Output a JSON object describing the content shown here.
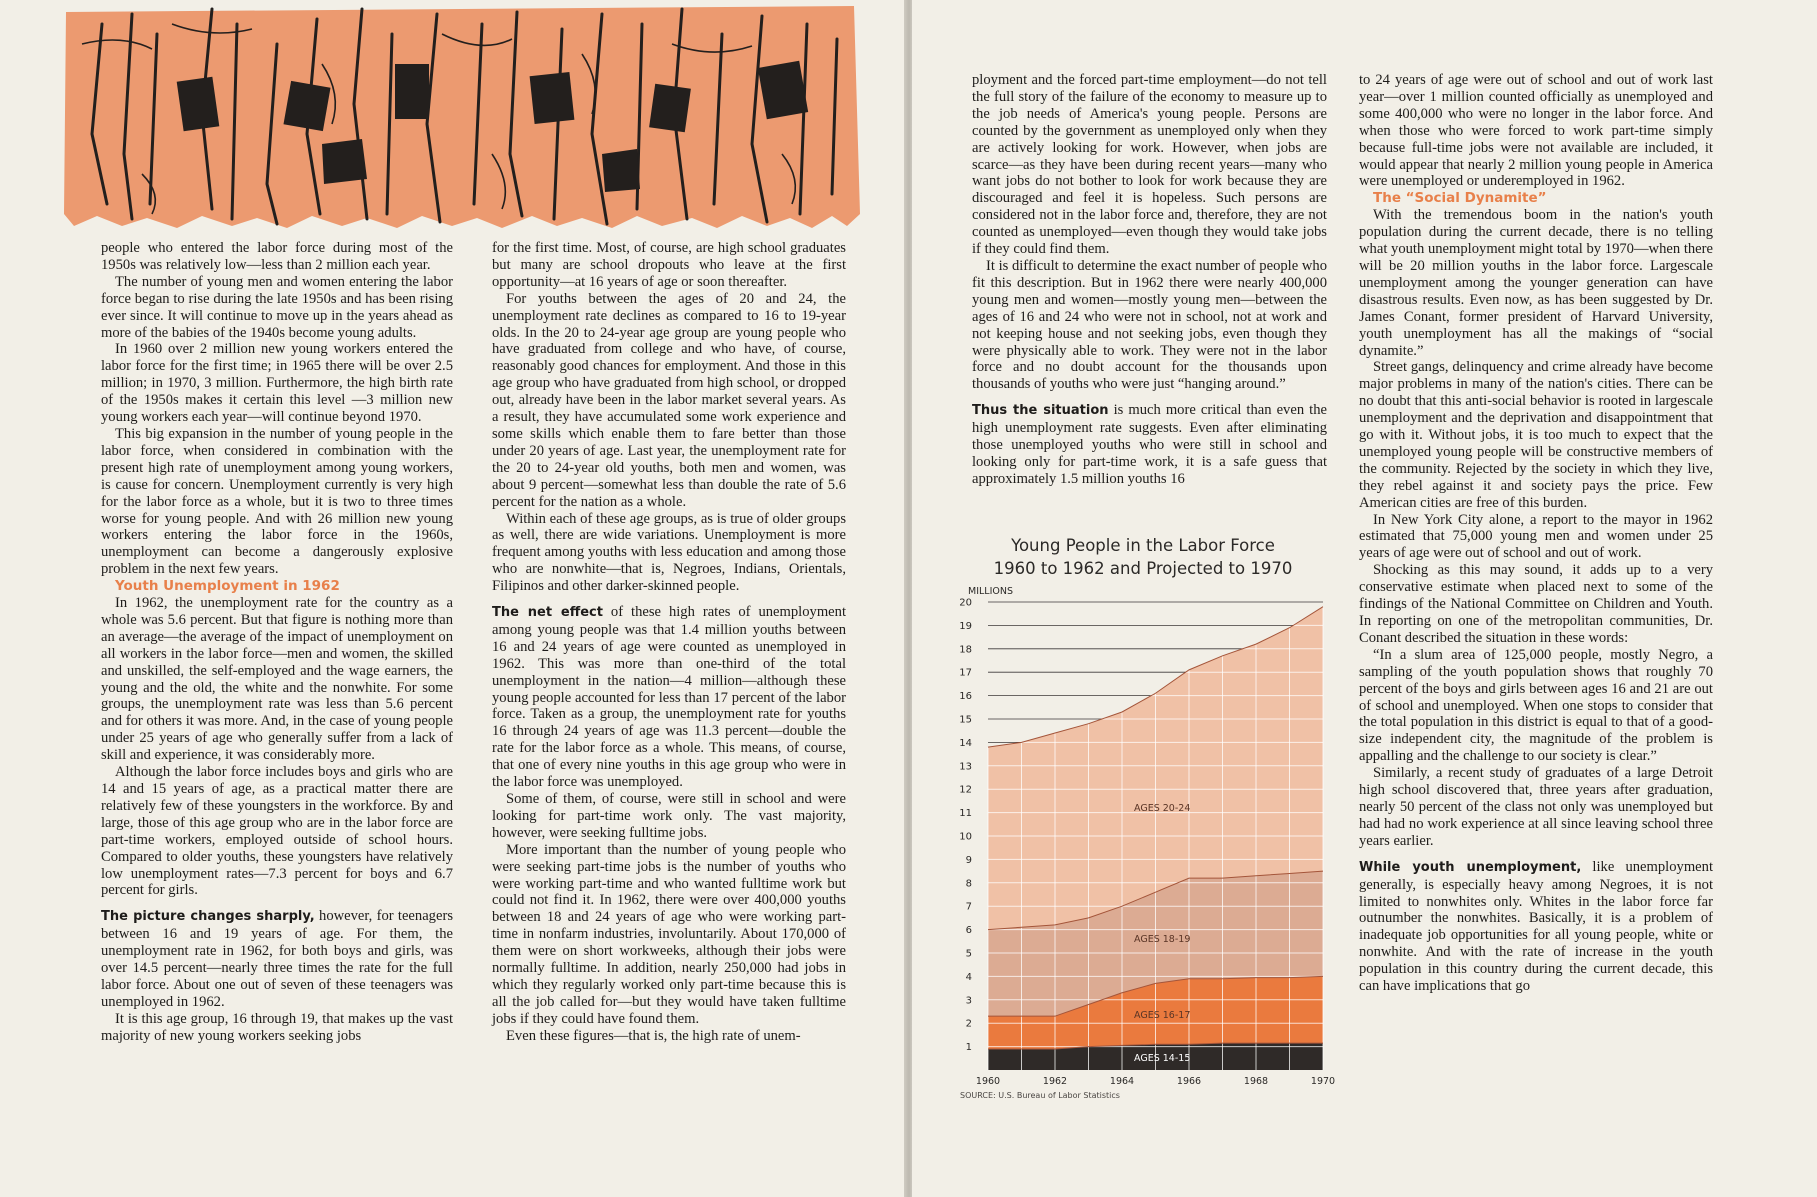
{
  "left_col1": {
    "p1": "people who entered the labor force during most of the 1950s was relatively low—less than 2 million each year.",
    "p2": "The number of young men and women entering the labor force began to rise during the late 1950s and has been rising ever since. It will continue to move up in the years ahead as more of the babies of the 1940s become young adults.",
    "p3": "In 1960 over 2 million new young workers entered the labor force for the first time; in 1965 there will be over 2.5 million; in 1970, 3 million. Furthermore, the high birth rate of the 1950s makes it certain this level —3 million new young workers each year—will continue beyond 1970.",
    "p4": "This big expansion in the number of young people in the labor force, when considered in combination with the present high rate of unemployment among young workers, is cause for concern. Unemployment currently is very high for the labor force as a whole, but it is two to three times worse for young people. And with 26 million new young workers entering the labor force in the 1960s, unemployment can become a dangerously explosive problem in the next few years.",
    "heading": "Youth Unemployment in 1962",
    "p5": "In 1962, the unemployment rate for the country as a whole was 5.6 percent. But that figure is nothing more than an average—the average of the impact of unemployment on all workers in the labor force—men and women, the skilled and unskilled, the self-employed and the wage earners, the young and the old, the white and the nonwhite. For some groups, the unemployment rate was less than 5.6 percent and for others it was more. And, in the case of young people under 25 years of age who generally suffer from a lack of skill and experience, it was considerably more.",
    "p6": "Although the labor force includes boys and girls who are 14 and 15 years of age, as a practical matter there are relatively few of these youngsters in the workforce. By and large, those of this age group who are in the labor force are part-time workers, employed outside of school hours. Compared to older youths, these youngsters have relatively low unemployment rates—7.3 percent for boys and 6.7 percent for girls.",
    "p7_lead": "The picture changes sharply,",
    "p7": " however, for teenagers between 16 and 19 years of age. For them, the unemployment rate in 1962, for both boys and girls, was over 14.5 percent—nearly three times the rate for the full labor force. About one out of seven of these teenagers was unemployed in 1962.",
    "p8": "It is this age group, 16 through 19, that makes up the vast majority of new young workers seeking jobs"
  },
  "left_col2": {
    "p1": "for the first time. Most, of course, are high school graduates but many are school dropouts who leave at the first opportunity—at 16 years of age or soon thereafter.",
    "p2": "For youths between the ages of 20 and 24, the unemployment rate declines as compared to 16 to 19-year olds. In the 20 to 24-year age group are young people who have graduated from college and who have, of course, reasonably good chances for employment. And those in this age group who have graduated from high school, or dropped out, already have been in the labor market several years. As a result, they have accumulated some work experience and some skills which enable them to fare better than those under 20 years of age. Last year, the unemployment rate for the 20 to 24-year old youths, both men and women, was about 9 percent—somewhat less than double the rate of 5.6 percent for the nation as a whole.",
    "p3": "Within each of these age groups, as is true of older groups as well, there are wide variations. Unemployment is more frequent among youths with less education and among those who are nonwhite—that is, Negroes, Indians, Orientals, Filipinos and other darker-skinned people.",
    "p4_lead": "The net effect",
    "p4": " of these high rates of unemployment among young people was that 1.4 million youths between 16 and 24 years of age were counted as unemployed in 1962. This was more than one-third of the total unemployment in the nation—4 million—although these young people accounted for less than 17 percent of the labor force. Taken as a group, the unemployment rate for youths 16 through 24 years of age was 11.3 percent—double the rate for the labor force as a whole. This means, of course, that one of every nine youths in this age group who were in the labor force was unemployed.",
    "p5": "Some of them, of course, were still in school and were looking for part-time work only. The vast majority, however, were seeking fulltime jobs.",
    "p6": "More important than the number of young people who were seeking part-time jobs is the number of youths who were working part-time and who wanted fulltime work but could not find it. In 1962, there were over 400,000 youths between 18 and 24 years of age who were working part-time in nonfarm industries, involuntarily. About 170,000 of them were on short workweeks, although their jobs were normally fulltime. In addition, nearly 250,000 had jobs in which they regularly worked only part-time because this is all the job called for—but they would have taken fulltime jobs if they could have found them.",
    "p7": "Even these figures—that is, the high rate of unem-"
  },
  "right_col1": {
    "p1": "ployment and the forced part-time employment—do not tell the full story of the failure of the economy to measure up to the job needs of America's young people. Persons are counted by the government as unemployed only when they are actively looking for work. However, when jobs are scarce—as they have been during recent years—many who want jobs do not bother to look for work because they are discouraged and feel it is hopeless. Such persons are considered not in the labor force and, therefore, they are not counted as unemployed—even though they would take jobs if they could find them.",
    "p2": "It is difficult to determine the exact number of people who fit this description. But in 1962 there were nearly 400,000 young men and women—mostly young men—between the ages of 16 and 24 who were not in school, not at work and not keeping house and not seeking jobs, even though they were physically able to work. They were not in the labor force and no doubt account for the thousands upon thousands of youths who were just “hanging around.”",
    "p3_lead": "Thus the situation",
    "p3": " is much more critical than even the high unemployment rate suggests. Even after eliminating those unemployed youths who were still in school and looking only for part-time work, it is a safe guess that approximately 1.5 million youths 16"
  },
  "right_col2": {
    "p1": "to 24 years of age were out of school and out of work last year—over 1 million counted officially as unemployed and some 400,000 who were no longer in the labor force. And when those who were forced to work part-time simply because full-time jobs were not available are included, it would appear that nearly 2 million young people in America were unemployed or underemployed in 1962.",
    "heading": "The “Social Dynamite”",
    "p2": "With the tremendous boom in the nation's youth population during the current decade, there is no telling what youth unemployment might total by 1970—when there will be 20 million youths in the labor force. Largescale unemployment among the younger generation can have disastrous results. Even now, as has been suggested by Dr. James Conant, former president of Harvard University, youth unemployment has all the makings of “social dynamite.”",
    "p3": "Street gangs, delinquency and crime already have become major problems in many of the nation's cities. There can be no doubt that this anti-social behavior is rooted in largescale unemployment and the deprivation and disappointment that go with it. Without jobs, it is too much to expect that the unemployed young people will be constructive members of the community. Rejected by the society in which they live, they rebel against it and society pays the price. Few American cities are free of this burden.",
    "p4": "In New York City alone, a report to the mayor in 1962 estimated that 75,000 young men and women under 25 years of age were out of school and out of work.",
    "p5": "Shocking as this may sound, it adds up to a very conservative estimate when placed next to some of the findings of the National Committee on Children and Youth. In reporting on one of the metropolitan communities, Dr. Conant described the situation in these words:",
    "p6": "“In a slum area of 125,000 people, mostly Negro, a sampling of the youth population shows that roughly 70 percent of the boys and girls between ages 16 and 21 are out of school and unemployed. When one stops to consider that the total population in this district is equal to that of a good-size independent city, the magnitude of the problem is appalling and the challenge to our society is clear.”",
    "p7": "Similarly, a recent study of graduates of a large Detroit high school discovered that, three years after graduation, nearly 50 percent of the class not only was unemployed but had had no work experience at all since leaving school three years earlier.",
    "p8_lead": "While youth unemployment,",
    "p8": " like unemployment generally, is especially heavy among Negroes, it is not limited to nonwhites only. Whites in the labor force far outnumber the nonwhites. Basically, it is a problem of inadequate job opportunities for all young people, white or nonwhite. And with the rate of increase in the youth population in this country during the current decade, this can have implications that go"
  },
  "chart_data": {
    "type": "area",
    "title_line1": "Young People in the Labor Force",
    "title_line2": "1960 to 1962 and Projected to 1970",
    "ylabel": "MILLIONS",
    "source": "SOURCE: U.S. Bureau of Labor Statistics",
    "x": [
      1960,
      1961,
      1962,
      1963,
      1964,
      1965,
      1966,
      1967,
      1968,
      1969,
      1970
    ],
    "x_tick_labels": [
      "1960",
      "1962",
      "1964",
      "1966",
      "1968",
      "1970"
    ],
    "x_ticks": [
      1960,
      1962,
      1964,
      1966,
      1968,
      1970
    ],
    "y_ticks": [
      1,
      2,
      3,
      4,
      5,
      6,
      7,
      8,
      9,
      10,
      11,
      12,
      13,
      14,
      15,
      16,
      17,
      18,
      19,
      20
    ],
    "ylim": [
      0,
      20
    ],
    "xlim": [
      1960,
      1970
    ],
    "stacked_totals": true,
    "series": [
      {
        "name": "AGES 14-15",
        "color": "#2f2a28",
        "values": [
          0.9,
          0.9,
          0.9,
          1.0,
          1.05,
          1.1,
          1.1,
          1.15,
          1.15,
          1.15,
          1.15
        ]
      },
      {
        "name": "AGES 16-17",
        "color": "#ea7a3e",
        "values": [
          2.3,
          2.3,
          2.3,
          2.8,
          3.3,
          3.7,
          3.9,
          3.9,
          3.95,
          3.95,
          4.0
        ]
      },
      {
        "name": "AGES 18-19",
        "color": "#dcab93",
        "values": [
          6.0,
          6.1,
          6.2,
          6.5,
          7.0,
          7.6,
          8.2,
          8.2,
          8.3,
          8.4,
          8.5
        ]
      },
      {
        "name": "AGES 20-24",
        "color": "#f0c1a6",
        "values": [
          13.8,
          14.0,
          14.4,
          14.8,
          15.3,
          16.1,
          17.1,
          17.7,
          18.2,
          18.9,
          19.8
        ]
      }
    ],
    "bg_color": "#f5dccd"
  }
}
